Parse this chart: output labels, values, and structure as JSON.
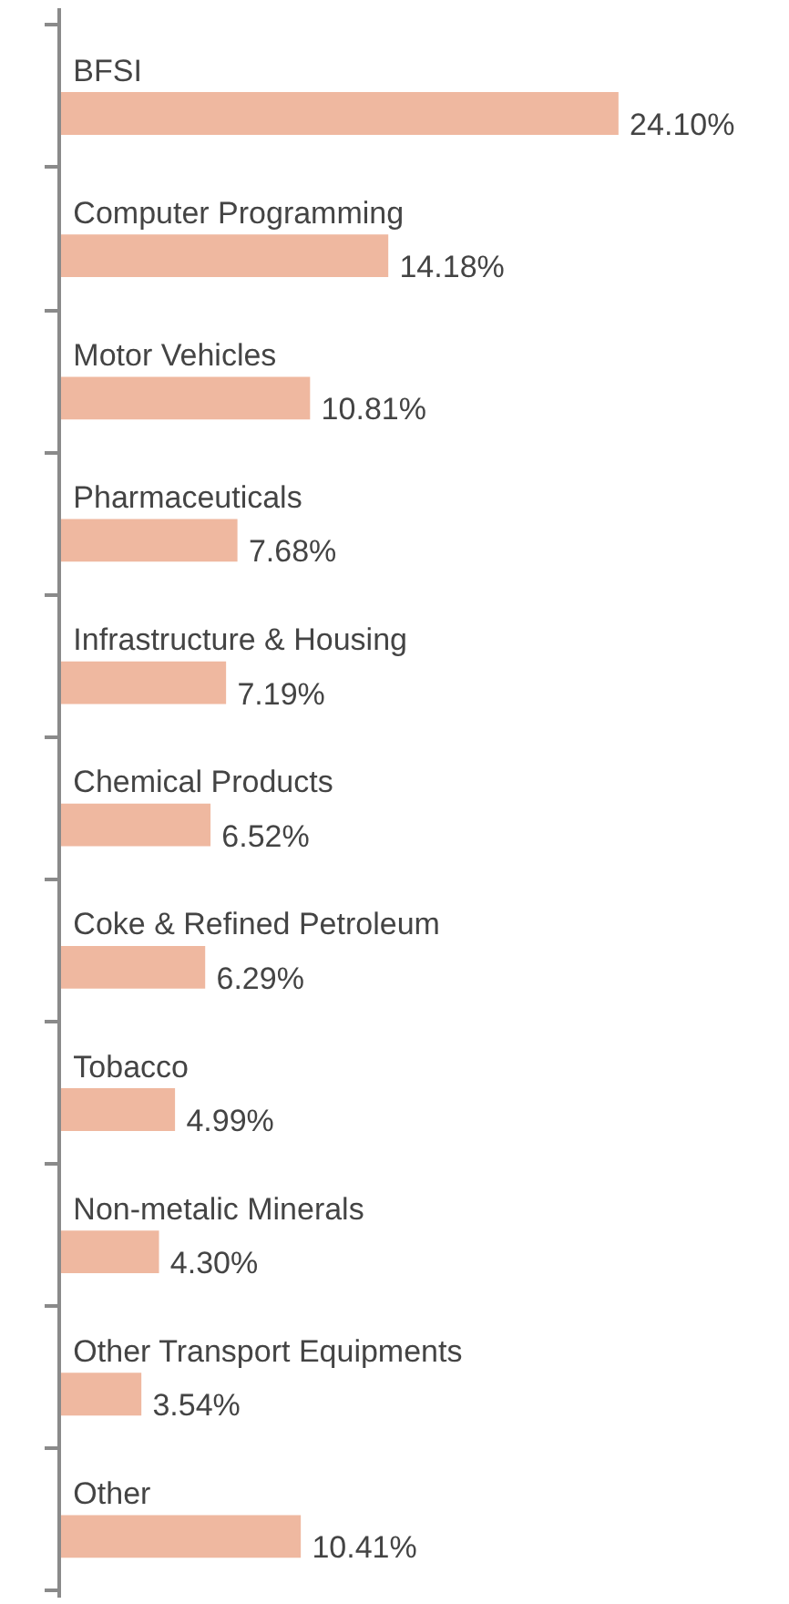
{
  "chart_data": {
    "type": "bar",
    "orientation": "horizontal",
    "categories": [
      "BFSI",
      "Computer Programming",
      "Motor Vehicles",
      "Pharmaceuticals",
      "Infrastructure & Housing",
      "Chemical Products",
      "Coke & Refined Petroleum",
      "Tobacco",
      "Non-metalic Minerals",
      "Other Transport Equipments",
      "Other"
    ],
    "values": [
      24.1,
      14.18,
      10.81,
      7.68,
      7.19,
      6.52,
      6.29,
      4.99,
      4.3,
      3.54,
      10.41
    ],
    "value_labels": [
      "24.10%",
      "14.18%",
      "10.81%",
      "7.68%",
      "7.19%",
      "6.52%",
      "6.29%",
      "4.99%",
      "4.30%",
      "3.54%",
      "10.41%"
    ],
    "color": "#efb8a0"
  }
}
